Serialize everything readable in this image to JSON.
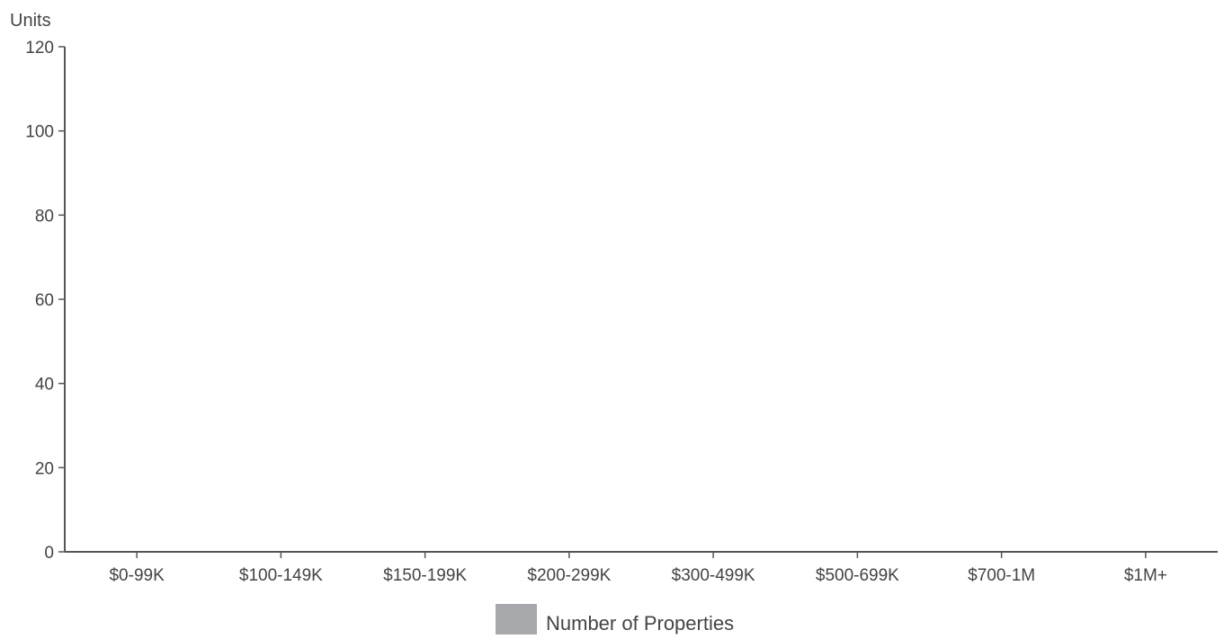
{
  "chart_data": {
    "type": "bar",
    "title": "",
    "ylabel": "Units",
    "xlabel": "",
    "categories": [
      "$0-99K",
      "$100-149K",
      "$150-199K",
      "$200-299K",
      "$300-499K",
      "$500-699K",
      "$700-1M",
      "$1M+"
    ],
    "series": [
      {
        "name": "Number of Properties",
        "values": [
          0,
          0,
          0,
          0,
          0,
          0,
          0,
          0
        ],
        "color": "#a7a9ac"
      }
    ],
    "ylim": [
      0,
      120
    ],
    "yticks": [
      0,
      20,
      40,
      60,
      80,
      100,
      120
    ],
    "grid": false,
    "legend_position": "bottom-center"
  }
}
